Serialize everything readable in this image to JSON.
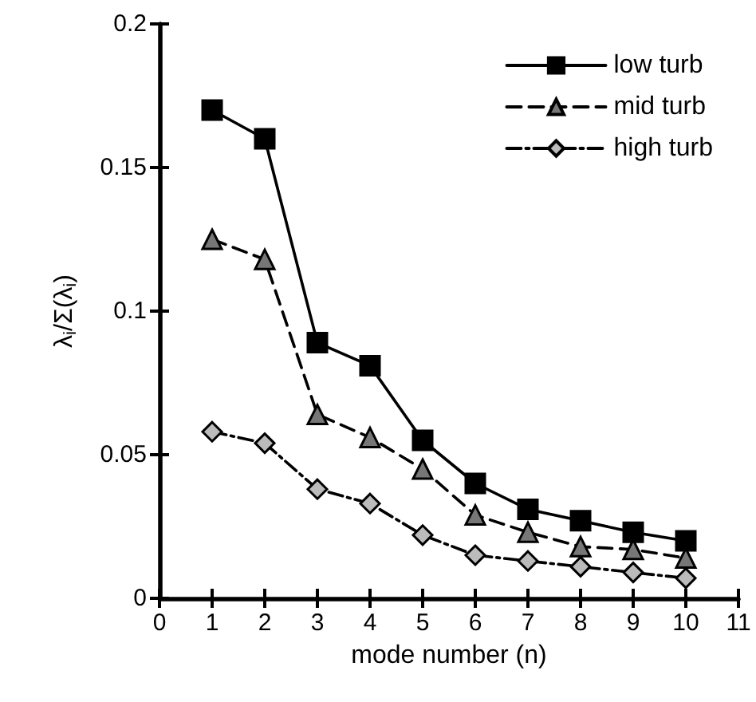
{
  "chart_data": {
    "type": "line",
    "xlabel": "mode number (n)",
    "ylabel": "λ$_{i}$/Σ(λ$_{i}$)",
    "x": [
      1,
      2,
      3,
      4,
      5,
      6,
      7,
      8,
      9,
      10
    ],
    "series": [
      {
        "name": "low turb",
        "color": "#000000",
        "marker": "square",
        "line_style": "solid",
        "values": [
          0.17,
          0.16,
          0.089,
          0.081,
          0.055,
          0.04,
          0.031,
          0.027,
          0.023,
          0.02
        ]
      },
      {
        "name": "mid turb",
        "color": "#777777",
        "marker": "triangle",
        "line_style": "dashed",
        "values": [
          0.125,
          0.118,
          0.064,
          0.056,
          0.045,
          0.029,
          0.023,
          0.018,
          0.017,
          0.014
        ]
      },
      {
        "name": "high turb",
        "color": "#bbbbbb",
        "marker": "diamond",
        "line_style": "dotted",
        "values": [
          0.058,
          0.054,
          0.038,
          0.033,
          0.022,
          0.015,
          0.013,
          0.011,
          0.009,
          0.007
        ]
      }
    ],
    "xlim": [
      0,
      11
    ],
    "xticks": [
      0,
      1,
      2,
      3,
      4,
      5,
      6,
      7,
      8,
      9,
      10,
      11
    ],
    "ylim": [
      0,
      0.2
    ],
    "yticks": [
      0,
      0.05,
      0.1,
      0.15,
      0.2
    ],
    "grid": false,
    "legend": "top right"
  }
}
